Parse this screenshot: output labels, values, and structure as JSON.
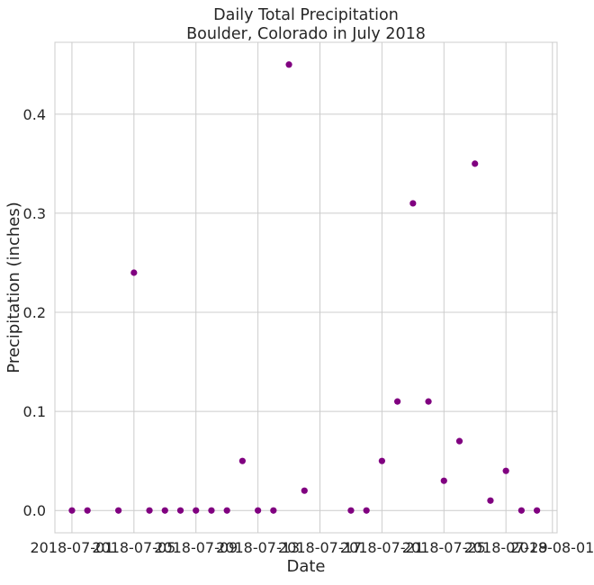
{
  "chart_data": {
    "type": "scatter",
    "title": "Daily Total Precipitation\nBoulder, Colorado in July 2018",
    "xlabel": "Date",
    "ylabel": "Precipitation (inches)",
    "x_tick_labels": [
      "2018-07-01",
      "2018-07-05",
      "2018-07-09",
      "2018-07-13",
      "2018-07-17",
      "2018-07-21",
      "2018-07-25",
      "2018-07-29",
      "2018-08-01"
    ],
    "y_tick_labels": [
      "0.0",
      "0.1",
      "0.2",
      "0.3",
      "0.4"
    ],
    "y_ticks": [
      0.0,
      0.1,
      0.2,
      0.3,
      0.4
    ],
    "xlim": [
      "2018-06-30",
      "2018-08-01"
    ],
    "ylim": [
      -0.0225,
      0.4725
    ],
    "grid": true,
    "marker_color": "#800080",
    "points": [
      {
        "date": "2018-07-01",
        "value": 0.0
      },
      {
        "date": "2018-07-02",
        "value": 0.0
      },
      {
        "date": "2018-07-04",
        "value": 0.0
      },
      {
        "date": "2018-07-05",
        "value": 0.24
      },
      {
        "date": "2018-07-06",
        "value": 0.0
      },
      {
        "date": "2018-07-07",
        "value": 0.0
      },
      {
        "date": "2018-07-08",
        "value": 0.0
      },
      {
        "date": "2018-07-09",
        "value": 0.0
      },
      {
        "date": "2018-07-10",
        "value": 0.0
      },
      {
        "date": "2018-07-11",
        "value": 0.0
      },
      {
        "date": "2018-07-12",
        "value": 0.05
      },
      {
        "date": "2018-07-13",
        "value": 0.0
      },
      {
        "date": "2018-07-14",
        "value": 0.0
      },
      {
        "date": "2018-07-15",
        "value": 0.45
      },
      {
        "date": "2018-07-16",
        "value": 0.02
      },
      {
        "date": "2018-07-19",
        "value": 0.0
      },
      {
        "date": "2018-07-20",
        "value": 0.0
      },
      {
        "date": "2018-07-21",
        "value": 0.05
      },
      {
        "date": "2018-07-22",
        "value": 0.11
      },
      {
        "date": "2018-07-23",
        "value": 0.31
      },
      {
        "date": "2018-07-24",
        "value": 0.11
      },
      {
        "date": "2018-07-25",
        "value": 0.03
      },
      {
        "date": "2018-07-26",
        "value": 0.07
      },
      {
        "date": "2018-07-27",
        "value": 0.35
      },
      {
        "date": "2018-07-28",
        "value": 0.01
      },
      {
        "date": "2018-07-29",
        "value": 0.04
      },
      {
        "date": "2018-07-30",
        "value": 0.0
      },
      {
        "date": "2018-07-31",
        "value": 0.0
      }
    ]
  }
}
